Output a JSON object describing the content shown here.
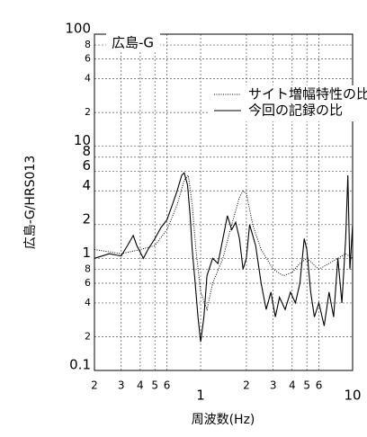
{
  "chart_data": {
    "type": "line",
    "annotation": "広島-G",
    "xlabel": "周波数(Hz)",
    "ylabel": "広島-G/HRS013",
    "log_x": true,
    "log_y": true,
    "grid": true,
    "legend": "upper right",
    "xlim": [
      0.2,
      10
    ],
    "ylim": [
      0.1,
      100
    ],
    "xticks": [
      {
        "value": 0.2,
        "label": "2"
      },
      {
        "value": 0.3,
        "label": "3"
      },
      {
        "value": 0.4,
        "label": "4"
      },
      {
        "value": 0.5,
        "label": "5"
      },
      {
        "value": 0.6,
        "label": "6"
      },
      1,
      2,
      3,
      4,
      5,
      6,
      10
    ],
    "yticks": [
      0.1,
      {
        "value": 0.2,
        "label": "2"
      },
      {
        "value": 0.4,
        "label": "4"
      },
      {
        "value": 0.6,
        "label": "6"
      },
      {
        "value": 0.8,
        "label": "8"
      },
      1,
      2,
      4,
      6,
      8,
      10,
      {
        "value": 20,
        "label": "2"
      },
      {
        "value": 40,
        "label": "4"
      },
      {
        "value": 60,
        "label": "6"
      },
      {
        "value": 80,
        "label": "8"
      },
      100
    ],
    "series": [
      {
        "name": "サイト増幅特性の比",
        "color": "#000000",
        "style": "dotted",
        "x": [
          0.2,
          0.3,
          0.4,
          0.5,
          0.6,
          0.7,
          0.78,
          0.83,
          0.88,
          0.93,
          1.0,
          1.1,
          1.2,
          1.4,
          1.6,
          1.8,
          1.9,
          2.0,
          2.2,
          2.5,
          3,
          3.5,
          4,
          4.5,
          5,
          6,
          7,
          8,
          9,
          10
        ],
        "values": [
          1.2,
          1.1,
          1.2,
          1.3,
          1.8,
          3,
          5,
          5.5,
          3,
          1.2,
          0.5,
          0.35,
          0.6,
          1.0,
          2.0,
          3.5,
          4,
          3.8,
          2.0,
          1.2,
          0.8,
          0.7,
          0.75,
          0.9,
          1.0,
          0.8,
          0.9,
          1.0,
          1.1,
          1.0
        ]
      },
      {
        "name": "今回の記録の比",
        "color": "#000000",
        "style": "solid",
        "x": [
          0.2,
          0.25,
          0.3,
          0.33,
          0.36,
          0.38,
          0.42,
          0.45,
          0.5,
          0.55,
          0.6,
          0.65,
          0.7,
          0.75,
          0.78,
          0.82,
          0.85,
          0.88,
          0.92,
          0.96,
          1.0,
          1.05,
          1.1,
          1.2,
          1.3,
          1.4,
          1.5,
          1.6,
          1.7,
          1.8,
          1.9,
          2.0,
          2.1,
          2.3,
          2.5,
          2.7,
          2.9,
          3.1,
          3.3,
          3.6,
          3.9,
          4.2,
          4.5,
          4.8,
          5.0,
          5.3,
          5.6,
          6.0,
          6.5,
          7,
          7.5,
          8,
          8.5,
          9,
          9.3,
          9.6,
          10
        ],
        "values": [
          1.0,
          1.1,
          1.05,
          1.3,
          1.6,
          1.3,
          1.0,
          1.2,
          1.5,
          1.9,
          2.2,
          3,
          4,
          5.5,
          5.8,
          4.5,
          2.5,
          1.2,
          0.6,
          0.3,
          0.18,
          0.3,
          0.7,
          1.0,
          0.9,
          1.5,
          2.4,
          1.8,
          2.1,
          1.5,
          0.8,
          1.0,
          2.0,
          1.3,
          0.6,
          0.35,
          0.5,
          0.3,
          0.45,
          0.35,
          0.5,
          0.4,
          0.6,
          1.5,
          1.2,
          0.5,
          0.3,
          0.4,
          0.25,
          0.5,
          0.3,
          1.0,
          0.4,
          1.5,
          5.5,
          0.8,
          2.0
        ]
      }
    ]
  }
}
